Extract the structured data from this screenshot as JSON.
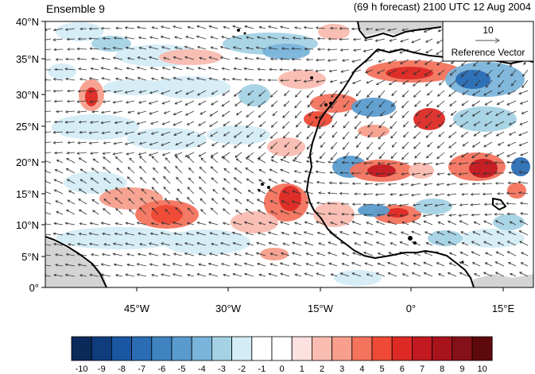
{
  "header": {
    "left": "Ensemble 9",
    "right": "(69 h forecast) 2100 UTC 12 Aug 2004"
  },
  "reference_vector": {
    "magnitude": "10",
    "label": "Reference Vector"
  },
  "axes": {
    "lat_labels": [
      "40°N",
      "35°N",
      "30°N",
      "25°N",
      "20°N",
      "15°N",
      "10°N",
      "5°N",
      "0°"
    ],
    "lon_labels": [
      "45°W",
      "30°W",
      "15°W",
      "0°",
      "15°E"
    ]
  },
  "colorbar": {
    "labels": [
      "-10",
      "-9",
      "-8",
      "-7",
      "-6",
      "-5",
      "-4",
      "-3",
      "-2",
      "-1",
      "0",
      "1",
      "2",
      "3",
      "4",
      "5",
      "6",
      "7",
      "8",
      "9",
      "10"
    ],
    "colors": [
      "#0b2a5a",
      "#0f3c7c",
      "#1a57a3",
      "#2a6db4",
      "#3f84c1",
      "#5a9bcd",
      "#7ab4da",
      "#a4d2e4",
      "#d4ecf6",
      "#ffffff",
      "#ffffff",
      "#fde0e0",
      "#f9bcb0",
      "#f79e8c",
      "#f3735d",
      "#ee4a36",
      "#dd2a25",
      "#c31a22",
      "#a8131c",
      "#861019",
      "#5e0a0d"
    ]
  },
  "colors": {
    "land": "#d4d4d4",
    "coast": "#000000",
    "vector": "#333333"
  }
}
